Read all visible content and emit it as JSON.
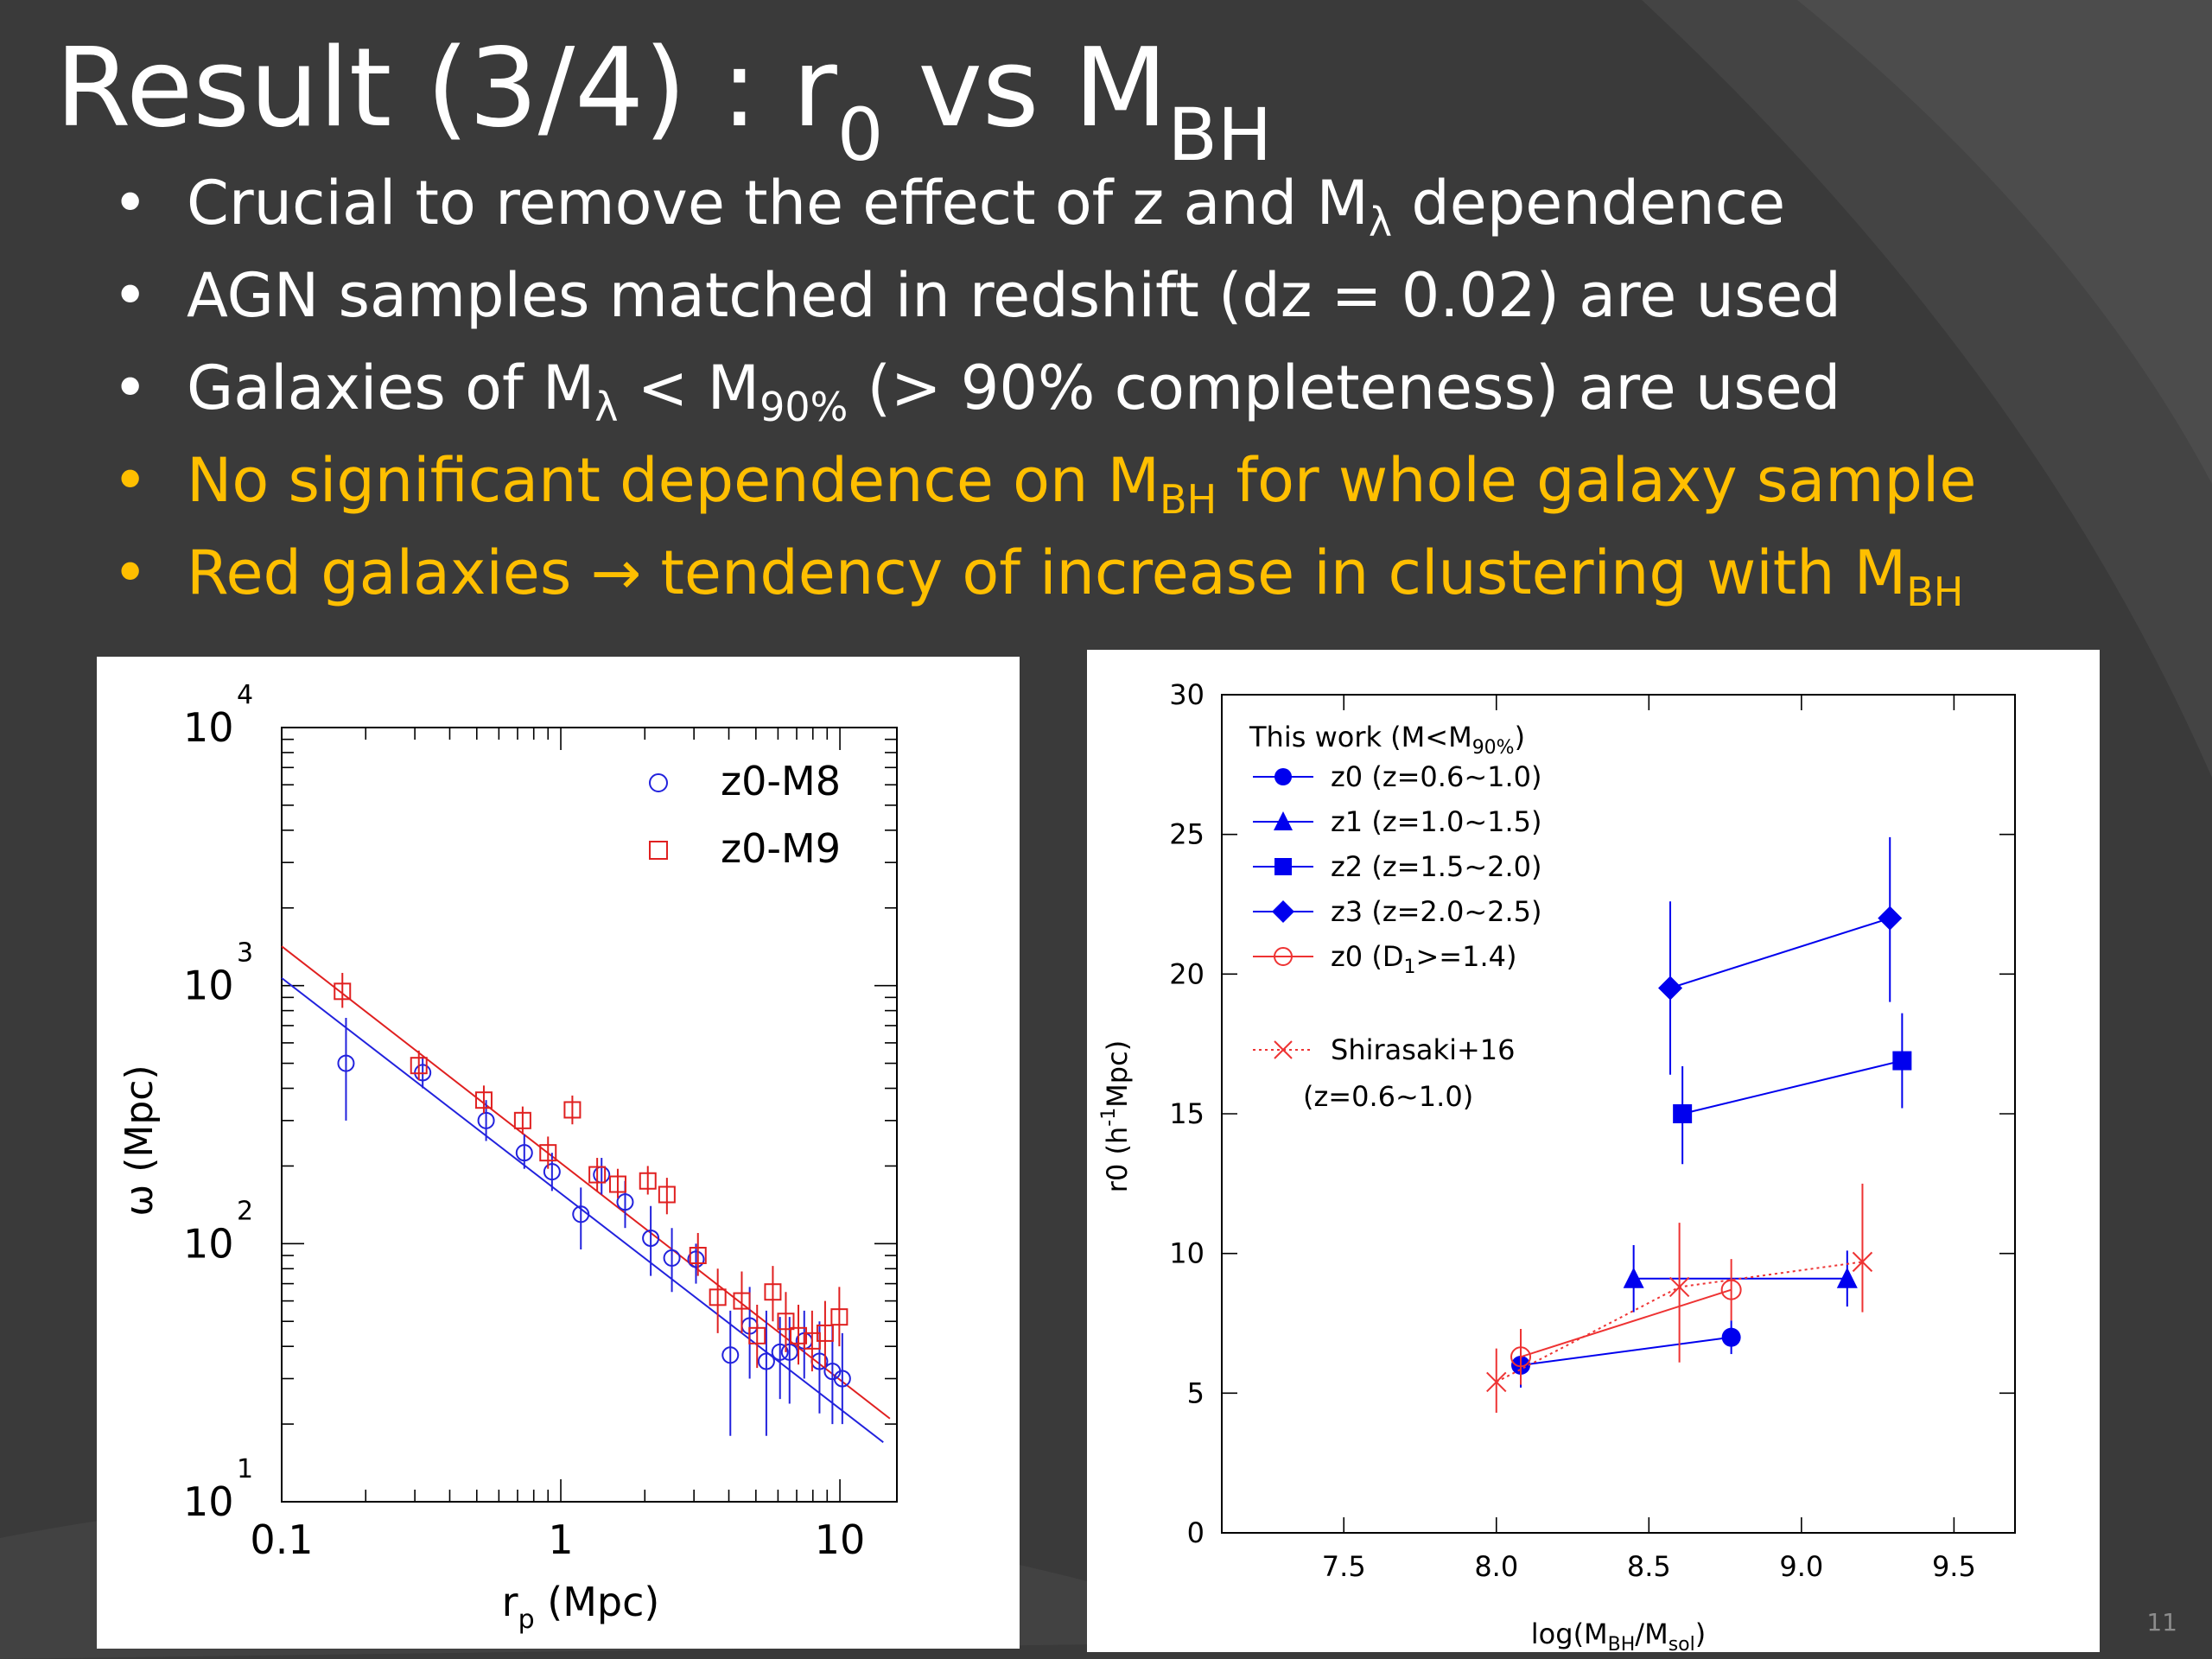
{
  "slide": {
    "title_main": "Result (3/4) : r",
    "title_sub0": "0",
    "title_mid": " vs M",
    "title_subBH": "BH",
    "page_number": "11",
    "colors": {
      "background": "#3a3a3a",
      "text": "#ffffff",
      "highlight": "#ffbf00",
      "panel": "#ffffff"
    }
  },
  "bullets": [
    {
      "bullet": "•",
      "a": "Crucial to remove the effect of z and M",
      "s": "λ",
      "b": " dependence"
    },
    {
      "bullet": "•",
      "a": "AGN samples matched in redshift (dz = 0.02) are used"
    },
    {
      "bullet": "•",
      "a": "Galaxies of M",
      "s": "λ",
      "b": " < M",
      "s2": "90%",
      "c": " (> 90% completeness) are used"
    },
    {
      "bullet": "•",
      "a": "No significant dependence on M",
      "s": "BH",
      "b": " for whole galaxy sample"
    },
    {
      "bullet": "•",
      "a": "Red galaxies → tendency of increase in clustering with M",
      "s": "BH"
    }
  ],
  "chart_data": [
    {
      "type": "scatter",
      "log_x": true,
      "log_y": true,
      "xlim": [
        0.1,
        16
      ],
      "ylim": [
        10,
        10000
      ],
      "xlabel": "r",
      "xlabel_sub": "p",
      "xlabel_tail": "  (Mpc)",
      "ylabel": "ω  (Mpc)",
      "x_ticks": [
        {
          "v": 0.1,
          "label": "0.1"
        },
        {
          "v": 1,
          "label": "1"
        },
        {
          "v": 10,
          "label": "10"
        }
      ],
      "y_ticks": [
        {
          "v": 10,
          "base": "10",
          "exp": "1"
        },
        {
          "v": 100,
          "base": "10",
          "exp": "2"
        },
        {
          "v": 1000,
          "base": "10",
          "exp": "3"
        },
        {
          "v": 10000,
          "base": "10",
          "exp": "4"
        }
      ],
      "legend_position": "top-right",
      "series": [
        {
          "name": "z0-M8",
          "color": "#2222dd",
          "marker": "circle-open",
          "x": [
            0.17,
            0.32,
            0.54,
            0.74,
            0.93,
            1.18,
            1.4,
            1.7,
            2.1,
            2.5,
            3.05,
            4.05,
            4.75,
            5.45,
            6.1,
            6.6,
            7.45,
            8.45,
            9.4,
            10.2
          ],
          "y": [
            500,
            460,
            300,
            225,
            190,
            130,
            185,
            145,
            105,
            88,
            87,
            37,
            48,
            35,
            38,
            38,
            42,
            35,
            32,
            30
          ],
          "yerr": [
            [
              300,
              750
            ],
            [
              400,
              530
            ],
            [
              250,
              360
            ],
            [
              195,
              265
            ],
            [
              160,
              225
            ],
            [
              95,
              165
            ],
            [
              155,
              215
            ],
            [
              115,
              175
            ],
            [
              75,
              140
            ],
            [
              65,
              115
            ],
            [
              70,
              100
            ],
            [
              18,
              55
            ],
            [
              30,
              68
            ],
            [
              18,
              55
            ],
            [
              25,
              52
            ],
            [
              24,
              52
            ],
            [
              30,
              55
            ],
            [
              22,
              50
            ],
            [
              20,
              48
            ],
            [
              20,
              45
            ]
          ]
        },
        {
          "name": "z0-M9",
          "color": "#e02020",
          "marker": "square-open",
          "x": [
            0.165,
            0.31,
            0.53,
            0.73,
            0.9,
            1.1,
            1.35,
            1.6,
            2.05,
            2.4,
            3.1,
            3.65,
            4.45,
            5.05,
            5.75,
            6.4,
            7.1,
            7.95,
            8.85,
            9.95
          ],
          "y": [
            950,
            490,
            360,
            300,
            225,
            330,
            185,
            170,
            175,
            155,
            90,
            62,
            60,
            44,
            65,
            50,
            44,
            42,
            45,
            52
          ],
          "yerr": [
            [
              820,
              1120
            ],
            [
              430,
              560
            ],
            [
              320,
              410
            ],
            [
              265,
              340
            ],
            [
              195,
              260
            ],
            [
              290,
              375
            ],
            [
              160,
              215
            ],
            [
              150,
              195
            ],
            [
              155,
              200
            ],
            [
              130,
              180
            ],
            [
              75,
              110
            ],
            [
              45,
              80
            ],
            [
              45,
              78
            ],
            [
              33,
              58
            ],
            [
              50,
              82
            ],
            [
              38,
              65
            ],
            [
              34,
              58
            ],
            [
              32,
              55
            ],
            [
              33,
              60
            ],
            [
              40,
              68
            ]
          ]
        }
      ],
      "fit_lines": [
        {
          "name": "z0-M8 fit",
          "color": "#2222dd",
          "x": [
            0.1,
            14.3
          ],
          "y": [
            1070,
            17
          ]
        },
        {
          "name": "z0-M9 fit",
          "color": "#e02020",
          "x": [
            0.1,
            15.1
          ],
          "y": [
            1420,
            21
          ]
        }
      ]
    },
    {
      "type": "scatter",
      "xlim": [
        7.1,
        9.7
      ],
      "ylim": [
        0,
        30
      ],
      "xlabel": "log(M",
      "xlabel_sub1": "BH",
      "xlabel_mid": "/M",
      "xlabel_sub2": "sol",
      "xlabel_tail": ")",
      "ylabel": "r0 (h",
      "ylabel_sup": "-1",
      "ylabel_tail": "Mpc)",
      "x_ticks": [
        7.5,
        8.0,
        8.5,
        9.0,
        9.5
      ],
      "x_tick_labels": [
        "7.5",
        "8.0",
        "8.5",
        "9.0",
        "9.5"
      ],
      "y_ticks": [
        0,
        5,
        10,
        15,
        20,
        25,
        30
      ],
      "legend_title": "This work (M<M",
      "legend_title_sub": "90%",
      "legend_title_tail": ")",
      "legend_position": "top-left",
      "series": [
        {
          "name": "z0 (z=0.6~1.0)",
          "color": "#0000ee",
          "marker": "circle-filled",
          "x": [
            8.08,
            8.77
          ],
          "y": [
            6.0,
            7.0
          ],
          "yerr": [
            [
              5.2,
              6.8
            ],
            [
              6.4,
              7.6
            ]
          ]
        },
        {
          "name": "z1 (z=1.0~1.5)",
          "color": "#0000ee",
          "marker": "triangle-filled",
          "x": [
            8.45,
            9.15
          ],
          "y": [
            9.1,
            9.1
          ],
          "yerr": [
            [
              7.9,
              10.3
            ],
            [
              8.1,
              10.1
            ]
          ]
        },
        {
          "name": "z2 (z=1.5~2.0)",
          "color": "#0000ee",
          "marker": "square-filled",
          "x": [
            8.61,
            9.33
          ],
          "y": [
            15.0,
            16.9
          ],
          "yerr": [
            [
              13.2,
              16.7
            ],
            [
              15.2,
              18.6
            ]
          ]
        },
        {
          "name": "z3 (z=2.0~2.5)",
          "color": "#0000ee",
          "marker": "diamond-filled",
          "x": [
            8.57,
            9.29
          ],
          "y": [
            19.5,
            22.0
          ],
          "yerr": [
            [
              16.4,
              22.6
            ],
            [
              19.0,
              24.9
            ]
          ]
        },
        {
          "name": "z0 (D",
          "name_sub": "1",
          "name_tail": ">=1.4)",
          "color": "#ee3333",
          "marker": "circle-open",
          "x": [
            8.08,
            8.77
          ],
          "y": [
            6.3,
            8.7
          ],
          "yerr": [
            [
              5.3,
              7.3
            ],
            [
              7.6,
              9.8
            ]
          ]
        },
        {
          "name": "Shirasaki+16",
          "name_line2": "(z=0.6~1.0)",
          "color": "#ee3333",
          "marker": "cross",
          "dotted": true,
          "x": [
            8.0,
            8.6,
            9.2
          ],
          "y": [
            5.4,
            8.8,
            9.7
          ],
          "yerr": [
            [
              4.3,
              6.6
            ],
            [
              6.1,
              11.1
            ],
            [
              7.9,
              12.5
            ]
          ]
        }
      ]
    }
  ]
}
